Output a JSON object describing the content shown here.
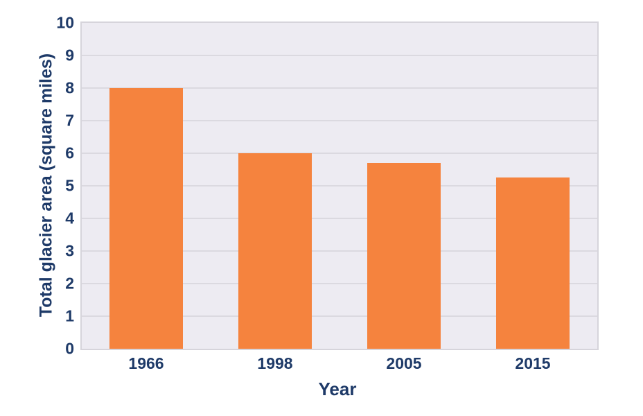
{
  "chart_data": {
    "type": "bar",
    "categories": [
      "1966",
      "1998",
      "2005",
      "2015"
    ],
    "values": [
      8.0,
      6.0,
      5.7,
      5.25
    ],
    "title": "",
    "xlabel": "Year",
    "ylabel": "Total glacier area (square miles)",
    "ylim": [
      0,
      10
    ],
    "ytick_step": 1,
    "yticks": [
      0,
      1,
      2,
      3,
      4,
      5,
      6,
      7,
      8,
      9,
      10
    ],
    "grid": true,
    "legend": "none",
    "bar_width_frac": 0.57,
    "colors": {
      "bar": "#F5833E",
      "text": "#1E3A68",
      "plot_background": "#EDEBF2",
      "gridline": "#DBD9E0",
      "plot_border": "#D6D4DB",
      "page_background": "#FFFFFF"
    }
  }
}
